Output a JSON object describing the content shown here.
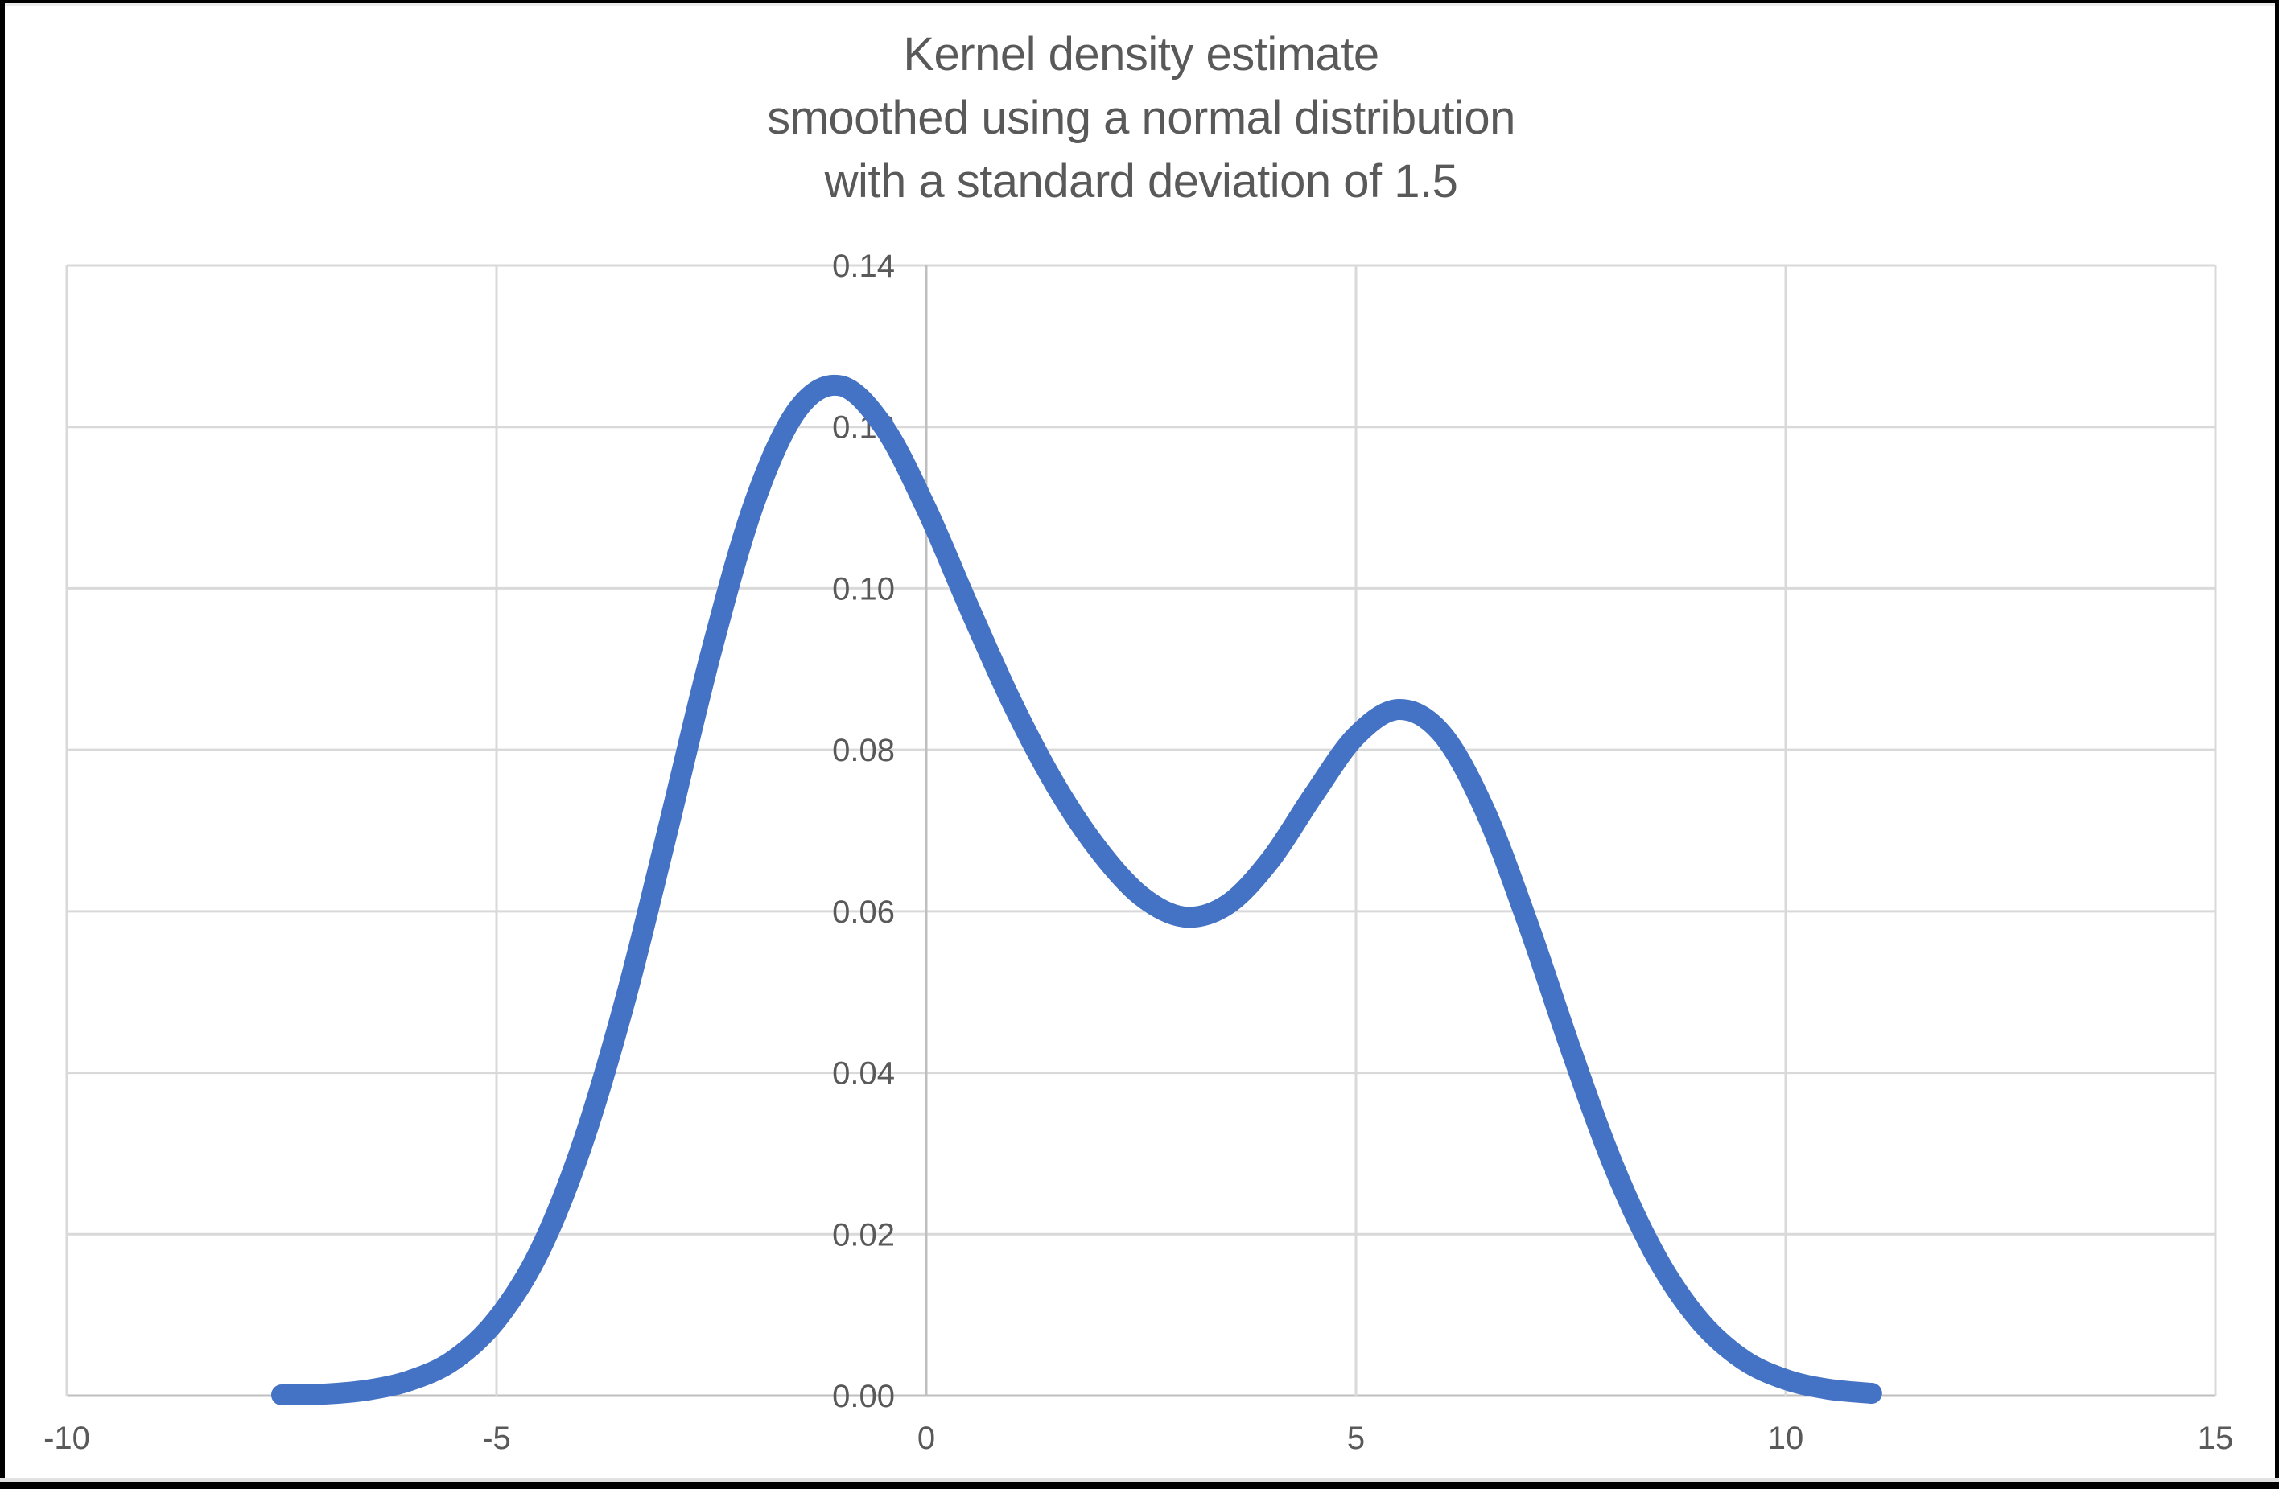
{
  "chart_data": {
    "type": "line",
    "title": "Kernel density estimate\nsmoothed using a normal distribution\nwith a standard deviation of 1.5",
    "xlabel": "",
    "ylabel": "",
    "grid": true,
    "legend": "none",
    "x_axis": {
      "min": -10,
      "max": 15,
      "ticks": [
        -10,
        -5,
        0,
        5,
        10,
        15
      ],
      "tick_labels": [
        "-10",
        "-5",
        "0",
        "5",
        "10",
        "15"
      ],
      "axis_line_at": 0
    },
    "y_axis": {
      "min": 0,
      "max": 0.14,
      "ticks": [
        0,
        0.02,
        0.04,
        0.06,
        0.08,
        0.1,
        0.12,
        0.14
      ],
      "tick_labels": [
        "0.00",
        "0.02",
        "0.04",
        "0.06",
        "0.08",
        "0.10",
        "0.12",
        "0.14"
      ],
      "axis_line_at": 0
    },
    "smoothing": {
      "kernel": "normal",
      "standard_deviation": 1.5
    },
    "series": [
      {
        "name": "kernel-density-estimate",
        "points": [
          [
            -7.5,
            0.0001
          ],
          [
            -7.0,
            0.0002
          ],
          [
            -6.5,
            0.0007
          ],
          [
            -6.0,
            0.0019
          ],
          [
            -5.5,
            0.0044
          ],
          [
            -5.0,
            0.0094
          ],
          [
            -4.5,
            0.0179
          ],
          [
            -4.0,
            0.0312
          ],
          [
            -3.5,
            0.0491
          ],
          [
            -3.0,
            0.0704
          ],
          [
            -2.5,
            0.0922
          ],
          [
            -2.0,
            0.1106
          ],
          [
            -1.5,
            0.1221
          ],
          [
            -1.0,
            0.1251
          ],
          [
            -0.5,
            0.1201
          ],
          [
            0.0,
            0.1099
          ],
          [
            0.5,
            0.0976
          ],
          [
            1.0,
            0.0858
          ],
          [
            1.5,
            0.0757
          ],
          [
            2.0,
            0.0677
          ],
          [
            2.5,
            0.0619
          ],
          [
            3.0,
            0.0593
          ],
          [
            3.5,
            0.0608
          ],
          [
            4.0,
            0.0663
          ],
          [
            4.5,
            0.0743
          ],
          [
            5.0,
            0.0817
          ],
          [
            5.5,
            0.085
          ],
          [
            6.0,
            0.082
          ],
          [
            6.5,
            0.0725
          ],
          [
            7.0,
            0.0585
          ],
          [
            7.5,
            0.0429
          ],
          [
            8.0,
            0.0284
          ],
          [
            8.5,
            0.0171
          ],
          [
            9.0,
            0.0093
          ],
          [
            9.5,
            0.0045
          ],
          [
            10.0,
            0.002
          ],
          [
            10.5,
            0.0008
          ],
          [
            11.0,
            0.0003
          ]
        ]
      }
    ],
    "colors": {
      "line": "#4472C4",
      "title_text": "#595959",
      "tick_text": "#595959",
      "gridline": "#D9D9D9",
      "axis_line": "#BFBFBF",
      "background": "#FFFFFF",
      "window_border": "#000000"
    }
  }
}
